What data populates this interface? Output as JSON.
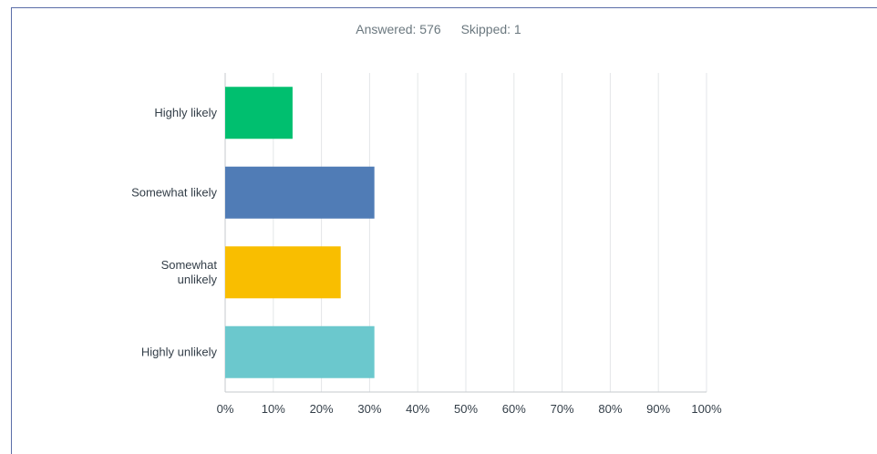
{
  "summary": {
    "answered": "Answered: 576",
    "skipped": "Skipped: 1"
  },
  "chart_data": {
    "type": "bar",
    "orientation": "horizontal",
    "title": "",
    "xlabel": "",
    "ylabel": "",
    "xlim": [
      0,
      100
    ],
    "x_ticks": [
      "0%",
      "10%",
      "20%",
      "30%",
      "40%",
      "50%",
      "60%",
      "70%",
      "80%",
      "90%",
      "100%"
    ],
    "grid": true,
    "categories": [
      "Highly likely",
      "Somewhat likely",
      "Somewhat unlikely",
      "Highly unlikely"
    ],
    "values": [
      14,
      31,
      24,
      31
    ],
    "colors": [
      "#00bf6f",
      "#507cb6",
      "#f9be00",
      "#6bc8cd"
    ]
  }
}
